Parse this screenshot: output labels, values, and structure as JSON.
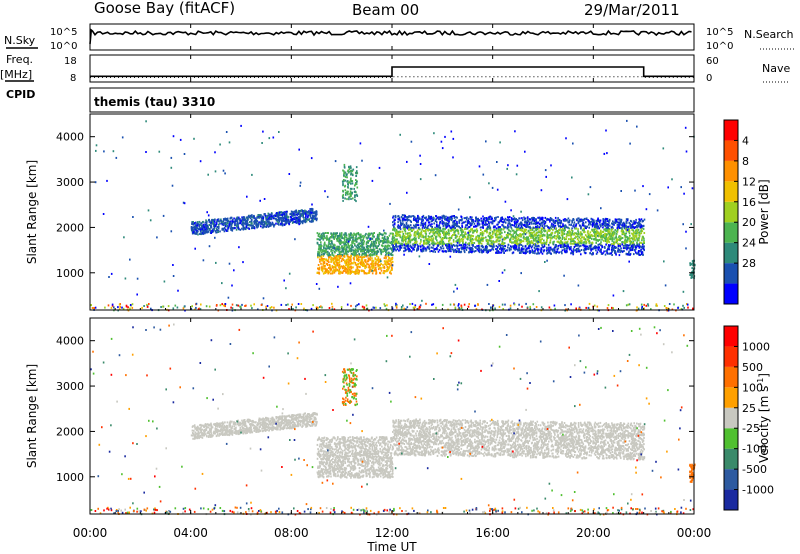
{
  "header": {
    "station": "Goose Bay (fitACF)",
    "beam": "Beam 00",
    "date": "29/Mar/2011"
  },
  "left_labels": {
    "nsky": "N.Sky",
    "freq": "Freq.",
    "freq_unit": "[MHz]",
    "cpid": "CPID"
  },
  "right_labels": {
    "nsearch": "N.Search",
    "nave": "Nave"
  },
  "cpid_value": "themis (tau) 3310",
  "chart_data": [
    {
      "type": "line",
      "panel": "noise",
      "series": [
        {
          "name": "N.Sky",
          "style": "solid"
        },
        {
          "name": "N.Search",
          "style": "dotted"
        }
      ],
      "yticks": [
        "10^5",
        "10^0"
      ],
      "yticks_right": [
        "10^5",
        "10^0"
      ]
    },
    {
      "type": "line",
      "panel": "frequency",
      "yticks": [
        "18",
        "8"
      ],
      "yticks_right": [
        "60",
        "0"
      ],
      "series": [
        {
          "name": "Freq.",
          "style": "solid",
          "x": [
            0,
            12,
            12,
            22,
            22,
            24
          ],
          "y": [
            10.6,
            10.6,
            15.8,
            15.8,
            10.6,
            10.6
          ]
        },
        {
          "name": "Nave",
          "style": "dotted",
          "x": [
            0,
            12,
            12,
            22,
            22,
            24
          ],
          "y": [
            12,
            12,
            14,
            14,
            12,
            12
          ]
        }
      ]
    },
    {
      "type": "heatmap",
      "panel": "power",
      "ylabel": "Slant Range [km]",
      "ylim": [
        180,
        4500
      ],
      "yticks": [
        1000,
        2000,
        3000,
        4000
      ],
      "colorbar": {
        "label": "Power [dB]",
        "ticks": [
          "4",
          "8",
          "12",
          "16",
          "20",
          "24",
          "28"
        ],
        "colors": [
          "#0000ff",
          "#1a50b0",
          "#2e8a7a",
          "#4cb450",
          "#a0d020",
          "#f0c000",
          "#ff9000",
          "#ff5000",
          "#ff0000"
        ]
      }
    },
    {
      "type": "heatmap",
      "panel": "velocity",
      "ylabel": "Slant Range [km]",
      "ylim": [
        180,
        4500
      ],
      "yticks": [
        1000,
        2000,
        3000,
        4000
      ],
      "colorbar": {
        "label": "Velocity [m s",
        "label_sup": "-1",
        "label_tail": "]",
        "ticks": [
          "1000",
          "500",
          "100",
          "25",
          "-25",
          "-100",
          "-500",
          "-1000"
        ],
        "colors": [
          "#1a2aa0",
          "#2d5aa0",
          "#3a8a6a",
          "#50c030",
          "#c8c8c0",
          "#ffa000",
          "#ff7000",
          "#ff3000",
          "#ff0000"
        ]
      }
    }
  ],
  "xaxis": {
    "label": "Time UT",
    "ticks": [
      "00:00",
      "04:00",
      "08:00",
      "12:00",
      "16:00",
      "20:00",
      "00:00"
    ],
    "tick_hours": [
      0,
      4,
      8,
      12,
      16,
      20,
      24
    ]
  }
}
